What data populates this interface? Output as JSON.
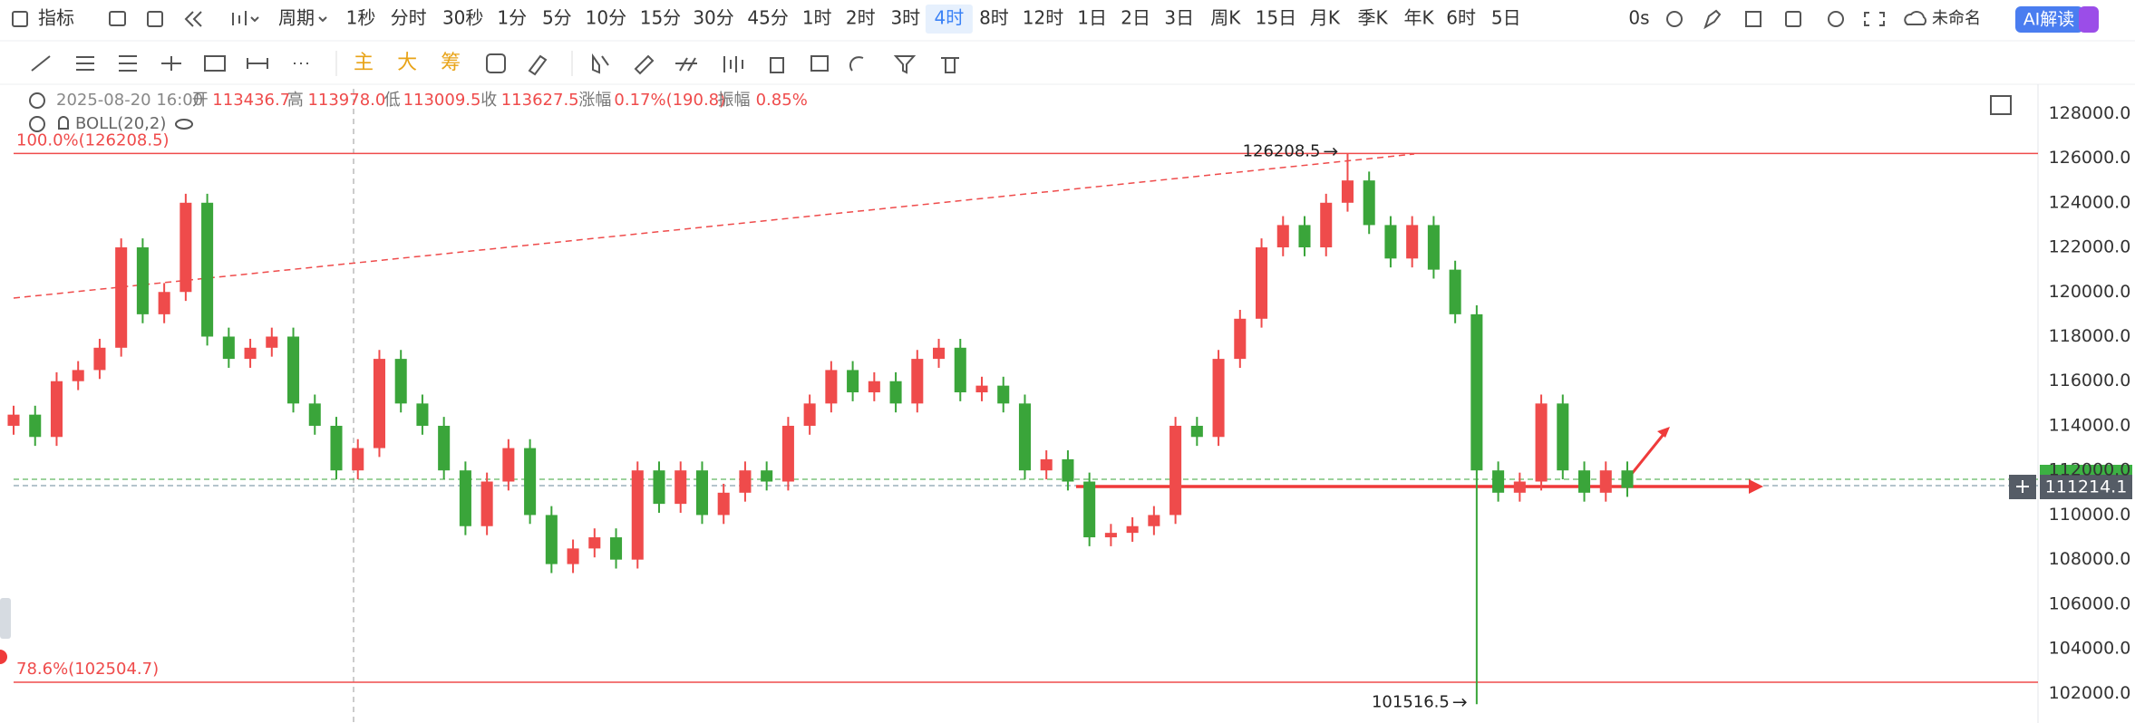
{
  "toolbar": {
    "indicator": "指标",
    "period": "周期",
    "intervals": [
      "1秒",
      "分时",
      "30秒",
      "1分",
      "5分",
      "10分",
      "15分",
      "30分",
      "45分",
      "1时",
      "2时",
      "3时",
      "4时",
      "8时",
      "12时",
      "1日",
      "2日",
      "3日",
      "周K",
      "15日",
      "月K",
      "季K",
      "年K",
      "6时",
      "5日"
    ],
    "active_interval": "4时",
    "timer": "0s",
    "workspace": "未命名",
    "ai_button": "AI解读"
  },
  "drawing_tools": {
    "labels": [
      "主",
      "大",
      "筹"
    ]
  },
  "info": {
    "date": "2025-08-20 16:00",
    "fields": [
      {
        "label": "开",
        "value": "113436.7"
      },
      {
        "label": "高",
        "value": "113978.0"
      },
      {
        "label": "低",
        "value": "113009.5"
      },
      {
        "label": "收",
        "value": "113627.5"
      },
      {
        "label": "涨幅",
        "value": "0.17%(190.8)"
      },
      {
        "label": "振幅",
        "value": "0.85%"
      }
    ]
  },
  "indicator": "BOLL(20,2)",
  "chart_data": {
    "type": "candlestick",
    "up_color": "#ef4b4b",
    "down_color": "#3aa53a",
    "grid": false,
    "ylim": [
      101000,
      129150
    ],
    "yticks": [
      {
        "value": 102000,
        "label": "102000.0"
      },
      {
        "value": 104000,
        "label": "104000.0"
      },
      {
        "value": 106000,
        "label": "106000.0"
      },
      {
        "value": 108000,
        "label": "108000.0"
      },
      {
        "value": 110000,
        "label": "110000.0"
      },
      {
        "value": 112000,
        "label": "112000.0"
      },
      {
        "value": 114000,
        "label": "114000.0"
      },
      {
        "value": 116000,
        "label": "116000.0"
      },
      {
        "value": 118000,
        "label": "118000.0"
      },
      {
        "value": 120000,
        "label": "120000.0"
      },
      {
        "value": 122000,
        "label": "122000.0"
      },
      {
        "value": 124000,
        "label": "124000.0"
      },
      {
        "value": 126000,
        "label": "126000.0"
      },
      {
        "value": 128000,
        "label": "128000.0"
      }
    ],
    "levels": [
      {
        "label": "100.0%(126208.5)",
        "value": 126208.5
      },
      {
        "label": "78.6%(102504.7)",
        "value": 102504.7
      }
    ],
    "high_label": "126208.5",
    "low_label": "101516.5",
    "last_price_label": "111214.1",
    "candles": {
      "open": [
        114000,
        114500,
        113500,
        116000,
        116500,
        117500,
        122000,
        119000,
        120000,
        124000,
        118000,
        117000,
        117500,
        118000,
        115000,
        114000,
        112000,
        113000,
        117000,
        115000,
        114000,
        112000,
        109500,
        111500,
        113000,
        110000,
        107800,
        108500,
        109000,
        108000,
        112000,
        110500,
        112000,
        110000,
        111000,
        112000,
        111500,
        114000,
        115000,
        116500,
        115500,
        116000,
        115000,
        117000,
        117500,
        115500,
        115800,
        115000,
        112000,
        112500,
        111500,
        109000,
        109200,
        109500,
        110000,
        114000,
        113500,
        117000,
        118800,
        122000,
        123000,
        122000,
        124000,
        125000,
        123000,
        121500,
        123000,
        121000,
        119000,
        112000,
        111000,
        111500,
        115000,
        112000,
        111000,
        112000
      ],
      "high": [
        114900,
        114900,
        116400,
        116900,
        117900,
        122400,
        122400,
        120400,
        124400,
        124400,
        118400,
        117900,
        118400,
        118400,
        115400,
        114400,
        113400,
        117400,
        117400,
        115400,
        114400,
        112400,
        111900,
        113400,
        113400,
        110400,
        108900,
        109400,
        109400,
        112400,
        112400,
        112400,
        112400,
        111400,
        112400,
        112400,
        114400,
        115400,
        116900,
        116900,
        116400,
        116400,
        117400,
        117900,
        117900,
        116200,
        116200,
        115400,
        112900,
        112900,
        111900,
        109600,
        109900,
        110400,
        114400,
        114400,
        117400,
        119200,
        122400,
        123400,
        123400,
        124400,
        126208.5,
        125400,
        123400,
        123400,
        123400,
        121400,
        119400,
        112400,
        111900,
        115400,
        115400,
        112400,
        112400,
        112400
      ],
      "low": [
        113600,
        113100,
        113100,
        115600,
        116100,
        117100,
        118600,
        118600,
        119600,
        117600,
        116600,
        116600,
        117100,
        114600,
        113600,
        111600,
        111600,
        112600,
        114600,
        113600,
        111600,
        109100,
        109100,
        111100,
        109600,
        107400,
        107400,
        108100,
        107600,
        107600,
        110100,
        110100,
        109600,
        109600,
        110600,
        111100,
        111100,
        113600,
        114600,
        115100,
        115100,
        114600,
        114600,
        116600,
        115100,
        115100,
        114600,
        111600,
        111600,
        111100,
        108600,
        108600,
        108800,
        109100,
        109600,
        113100,
        113100,
        116600,
        118400,
        121600,
        121600,
        121600,
        123600,
        122600,
        121100,
        121100,
        120600,
        118600,
        101516.5,
        110600,
        110600,
        111100,
        111600,
        110600,
        110600,
        110814.1
      ],
      "close": [
        114500,
        113500,
        116000,
        116500,
        117500,
        122000,
        119000,
        120000,
        124000,
        118000,
        117000,
        117500,
        118000,
        115000,
        114000,
        112000,
        113000,
        117000,
        115000,
        114000,
        112000,
        109500,
        111500,
        113000,
        110000,
        107800,
        108500,
        109000,
        108000,
        112000,
        110500,
        112000,
        110000,
        111000,
        112000,
        111500,
        114000,
        115000,
        116500,
        115500,
        116000,
        115000,
        117000,
        117500,
        115500,
        115800,
        115000,
        112000,
        112500,
        111500,
        109000,
        109200,
        109500,
        110000,
        114000,
        113500,
        117000,
        118800,
        122000,
        123000,
        122000,
        124000,
        125000,
        123000,
        121500,
        123000,
        121000,
        119000,
        112000,
        111000,
        111500,
        115000,
        112000,
        111000,
        112000,
        111214.1
      ]
    }
  }
}
